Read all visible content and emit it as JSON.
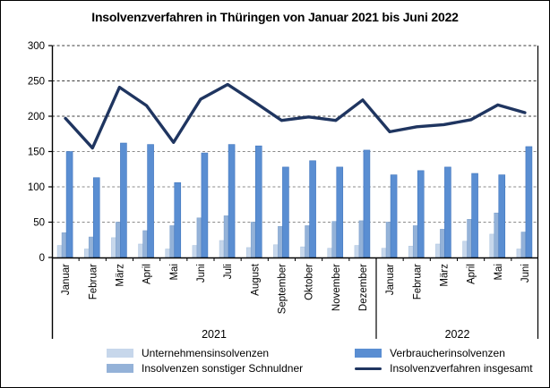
{
  "title": "Insolvenzverfahren in Thüringen von Januar 2021 bis Juni 2022",
  "chart_data": {
    "type": "bar",
    "subtype": "grouped bars with overlay line",
    "title": "Insolvenzverfahren in Thüringen von Januar 2021 bis Juni 2022",
    "categories": [
      "Januar",
      "Februar",
      "März",
      "April",
      "Mai",
      "Juni",
      "Juli",
      "August",
      "September",
      "Oktober",
      "November",
      "Dezember",
      "Januar",
      "Februar",
      "März",
      "April",
      "Mai",
      "Juni"
    ],
    "year_groups": [
      {
        "label": "2021",
        "months": 12
      },
      {
        "label": "2022",
        "months": 6
      }
    ],
    "series": [
      {
        "name": "Unternehmensinsolvenzen",
        "type": "bar",
        "color": "#c7d7eb",
        "edge": "#afc6e0",
        "values": [
          17,
          12,
          28,
          19,
          12,
          17,
          24,
          14,
          18,
          15,
          13,
          17,
          13,
          16,
          19,
          23,
          33,
          12
        ]
      },
      {
        "name": "Insolvenzen sonstiger Schnuldner",
        "type": "bar",
        "color": "#94b2d8",
        "edge": "#7fa2cd",
        "values": [
          35,
          29,
          50,
          38,
          45,
          56,
          59,
          50,
          44,
          45,
          51,
          52,
          50,
          45,
          40,
          54,
          63,
          36
        ]
      },
      {
        "name": "Verbraucherinsolvenzen",
        "type": "bar",
        "color": "#5a8ed2",
        "edge": "#4377be",
        "values": [
          150,
          113,
          162,
          160,
          106,
          148,
          160,
          158,
          128,
          137,
          128,
          152,
          117,
          123,
          128,
          119,
          117,
          157
        ]
      },
      {
        "name": "Insolvenzverfahren insgesamt",
        "type": "line",
        "color": "#1f3560",
        "values": [
          197,
          155,
          241,
          215,
          163,
          224,
          245,
          220,
          194,
          199,
          194,
          223,
          178,
          185,
          188,
          195,
          216,
          205
        ]
      }
    ],
    "ylim": [
      0,
      300
    ],
    "ytick_step": 50,
    "ytick_labels": [
      "0",
      "50",
      "100",
      "150",
      "200",
      "250",
      "300"
    ],
    "grid": "horizontal dashed",
    "legend_position": "bottom",
    "legend_columns": 2,
    "legend_order_column_major": [
      "Unternehmensinsolvenzen",
      "Verbraucherinsolvenzen",
      "Insolvenzen sonstiger Schnuldner",
      "Insolvenzverfahren insgesamt"
    ]
  }
}
